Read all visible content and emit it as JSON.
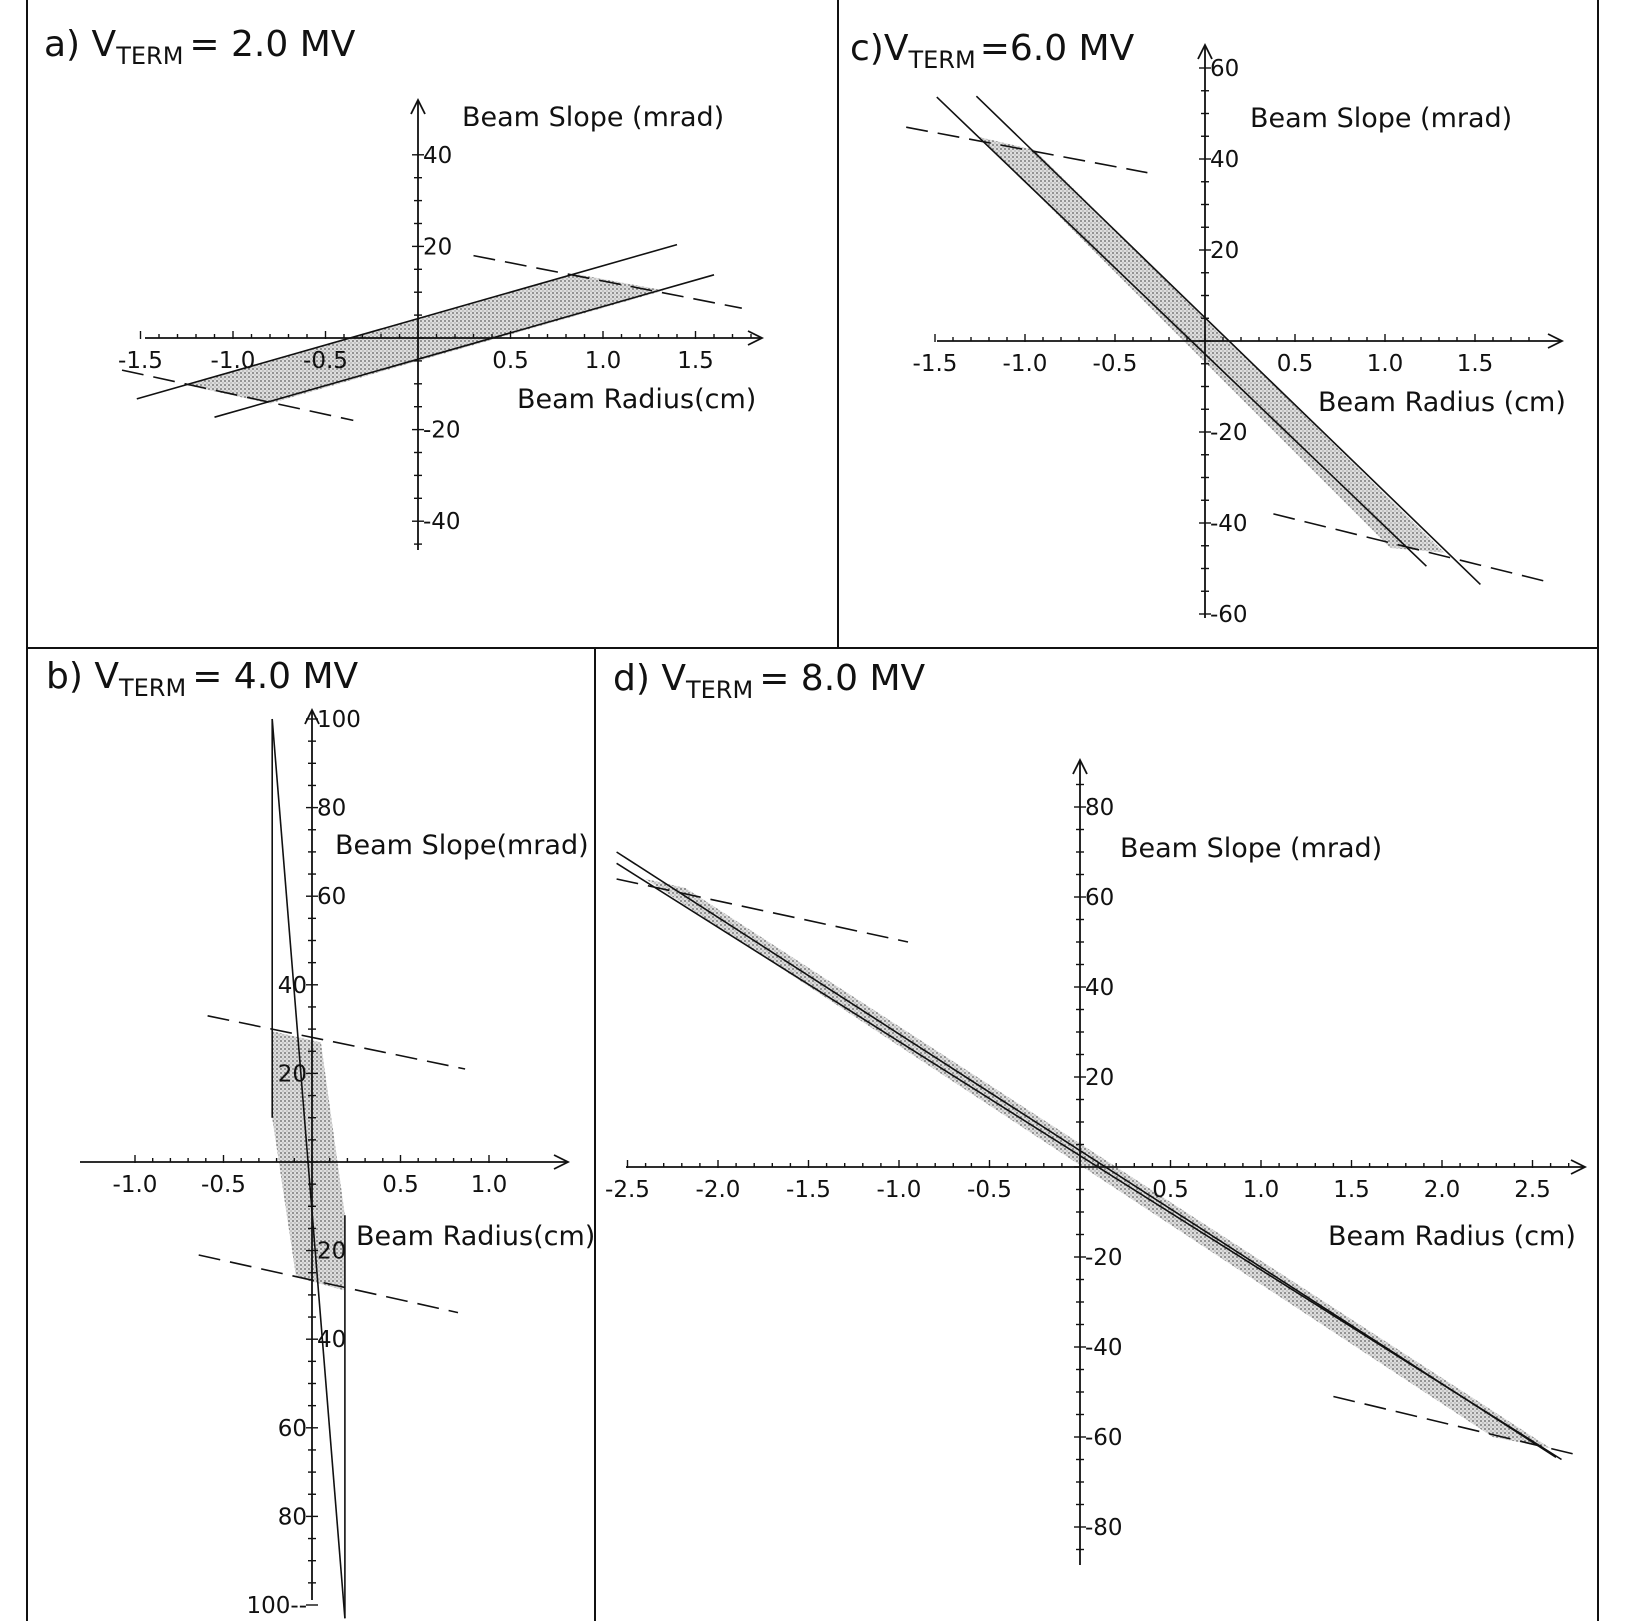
{
  "figure": {
    "colors": {
      "ink": "#111111",
      "shade": "#c9c9c9",
      "paper": "#ffffff"
    }
  },
  "chart_data": [
    {
      "id": "a",
      "type": "area",
      "title_prefix": "a) V",
      "title_sub": "TERM",
      "title_suffix": "= 2.0 MV",
      "xlabel": "Beam Radius(cm)",
      "ylabel": "Beam Slope (mrad)",
      "xlim": [
        -1.55,
        1.85
      ],
      "ylim": [
        -45,
        45
      ],
      "x_tick_labels": [
        {
          "v": -1.5,
          "t": "-1.5"
        },
        {
          "v": -1.0,
          "t": "-1.0"
        },
        {
          "v": -0.5,
          "t": "-0.5"
        },
        {
          "v": 0.5,
          "t": "0.5"
        },
        {
          "v": 1.0,
          "t": "1.0"
        },
        {
          "v": 1.5,
          "t": "1.5"
        }
      ],
      "y_tick_labels": [
        {
          "v": 40,
          "t": "40"
        },
        {
          "v": 20,
          "t": "20"
        },
        {
          "v": -20,
          "t": "-20"
        },
        {
          "v": -40,
          "t": "-40"
        }
      ],
      "lines": [
        {
          "style": "solid",
          "points": [
            [
              -1.52,
              -13.3
            ],
            [
              1.4,
              20.4
            ]
          ]
        },
        {
          "style": "solid",
          "points": [
            [
              -1.1,
              -17.3
            ],
            [
              1.6,
              13.8
            ]
          ]
        },
        {
          "style": "dashed",
          "points": [
            [
              -1.6,
              -7
            ],
            [
              -0.35,
              -18
            ]
          ]
        },
        {
          "style": "dashed",
          "points": [
            [
              0.3,
              18
            ],
            [
              1.75,
              6.5
            ]
          ]
        }
      ],
      "region": [
        [
          -1.25,
          -10.3
        ],
        [
          0.85,
          14
        ],
        [
          1.33,
          10.4
        ],
        [
          -0.8,
          -14.3
        ]
      ]
    },
    {
      "id": "c",
      "type": "area",
      "title_prefix": "c)V",
      "title_sub": "TERM",
      "title_suffix": "=6.0 MV",
      "xlabel": "Beam Radius (cm)",
      "ylabel": "Beam Slope (mrad)",
      "xlim": [
        -1.5,
        1.95
      ],
      "ylim": [
        -63,
        63
      ],
      "x_tick_labels": [
        {
          "v": -1.5,
          "t": "-1.5"
        },
        {
          "v": -1.0,
          "t": "-1.0"
        },
        {
          "v": -0.5,
          "t": "-0.5"
        },
        {
          "v": 0.5,
          "t": "0.5"
        },
        {
          "v": 1.0,
          "t": "1.0"
        },
        {
          "v": 1.5,
          "t": "1.5"
        }
      ],
      "y_tick_labels": [
        {
          "v": 60,
          "t": "60"
        },
        {
          "v": 40,
          "t": "40"
        },
        {
          "v": 20,
          "t": "20"
        },
        {
          "v": -20,
          "t": "-20"
        },
        {
          "v": -40,
          "t": "-40"
        },
        {
          "v": -60,
          "t": "-60"
        }
      ],
      "lines": [
        {
          "style": "solid",
          "points": [
            [
              -1.49,
              53.6
            ],
            [
              1.23,
              -49.5
            ]
          ]
        },
        {
          "style": "solid",
          "points": [
            [
              -1.27,
              53.8
            ],
            [
              1.53,
              -53.5
            ]
          ]
        },
        {
          "style": "dashed",
          "points": [
            [
              -1.66,
              47
            ],
            [
              -0.32,
              37
            ]
          ]
        },
        {
          "style": "dashed",
          "points": [
            [
              0.38,
              -38
            ],
            [
              1.91,
              -53
            ]
          ]
        }
      ],
      "region": [
        [
          -1.25,
          44.8
        ],
        [
          -0.95,
          42
        ],
        [
          1.33,
          -46.5
        ],
        [
          1.03,
          -45.5
        ]
      ]
    },
    {
      "id": "b",
      "type": "area",
      "title_prefix": "b) V",
      "title_sub": "TERM",
      "title_suffix": "= 4.0 MV",
      "xlabel": "Beam Radius(cm)",
      "ylabel": "Beam Slope(mrad)",
      "xlim": [
        -1.25,
        1.35
      ],
      "ylim": [
        -102,
        102
      ],
      "x_tick_labels": [
        {
          "v": -1.0,
          "t": "-1.0"
        },
        {
          "v": -0.5,
          "t": "-0.5"
        },
        {
          "v": 0.5,
          "t": "0.5"
        },
        {
          "v": 1.0,
          "t": "1.0"
        }
      ],
      "y_tick_labels": [
        {
          "v": 100,
          "t": "100",
          "side": "right"
        },
        {
          "v": 80,
          "t": "80",
          "side": "right"
        },
        {
          "v": 60,
          "t": "60",
          "side": "right"
        },
        {
          "v": 40,
          "t": "40",
          "side": "left"
        },
        {
          "v": 20,
          "t": "20",
          "side": "left"
        },
        {
          "v": -20,
          "t": "20",
          "side": "right"
        },
        {
          "v": -40,
          "t": "40",
          "side": "right"
        },
        {
          "v": -60,
          "t": "60",
          "side": "left"
        },
        {
          "v": -80,
          "t": "80",
          "side": "left"
        },
        {
          "v": -100,
          "t": "100--",
          "side": "left"
        }
      ],
      "lines": [
        {
          "style": "solid",
          "points": [
            [
              -0.225,
              100
            ],
            [
              0.186,
              -103
            ]
          ]
        },
        {
          "style": "solid",
          "points": [
            [
              -0.225,
              100
            ],
            [
              -0.225,
              10
            ]
          ]
        },
        {
          "style": "solid",
          "points": [
            [
              0.186,
              -12
            ],
            [
              0.186,
              -103
            ]
          ]
        },
        {
          "style": "dashed",
          "points": [
            [
              -0.59,
              33
            ],
            [
              0.865,
              21
            ]
          ]
        },
        {
          "style": "dashed",
          "points": [
            [
              -0.64,
              -21
            ],
            [
              0.825,
              -34
            ]
          ]
        }
      ],
      "region": [
        [
          -0.225,
          29.5
        ],
        [
          0.05,
          27
        ],
        [
          0.186,
          -12
        ],
        [
          0.186,
          -29
        ],
        [
          -0.09,
          -26
        ],
        [
          -0.225,
          10
        ]
      ]
    },
    {
      "id": "d",
      "type": "area",
      "title_prefix": "d) V",
      "title_sub": "TERM",
      "title_suffix": "= 8.0 MV",
      "xlabel": "Beam Radius (cm)",
      "ylabel": "Beam Slope (mrad)",
      "xlim": [
        -2.5,
        2.75
      ],
      "ylim": [
        -88,
        90
      ],
      "x_tick_labels": [
        {
          "v": -2.5,
          "t": "-2.5"
        },
        {
          "v": -2.0,
          "t": "-2.0"
        },
        {
          "v": -1.5,
          "t": "-1.5"
        },
        {
          "v": -1.0,
          "t": "-1.0"
        },
        {
          "v": -0.5,
          "t": "-0.5"
        },
        {
          "v": 0.5,
          "t": "0.5"
        },
        {
          "v": 1.0,
          "t": "1.0"
        },
        {
          "v": 1.5,
          "t": "1.5"
        },
        {
          "v": 2.0,
          "t": "2.0"
        },
        {
          "v": 2.5,
          "t": "2.5"
        }
      ],
      "y_tick_labels": [
        {
          "v": 80,
          "t": "80"
        },
        {
          "v": 60,
          "t": "60"
        },
        {
          "v": 40,
          "t": "40"
        },
        {
          "v": 20,
          "t": "20"
        },
        {
          "v": -20,
          "t": "-20"
        },
        {
          "v": -40,
          "t": "-40"
        },
        {
          "v": -60,
          "t": "-60"
        },
        {
          "v": -80,
          "t": "-80"
        }
      ],
      "lines": [
        {
          "style": "solid",
          "points": [
            [
              -2.56,
              67.5
            ],
            [
              2.66,
              -65
            ]
          ]
        },
        {
          "style": "solid",
          "points": [
            [
              -2.56,
              70
            ],
            [
              2.63,
              -64.5
            ]
          ]
        },
        {
          "style": "dashed",
          "points": [
            [
              -2.56,
              64
            ],
            [
              -0.95,
              50
            ]
          ]
        },
        {
          "style": "dashed",
          "points": [
            [
              1.4,
              -51
            ],
            [
              2.75,
              -64
            ]
          ]
        }
      ],
      "region": [
        [
          -2.4,
          64
        ],
        [
          -2.18,
          62
        ],
        [
          2.6,
          -62.5
        ],
        [
          2.28,
          -60
        ]
      ]
    }
  ]
}
